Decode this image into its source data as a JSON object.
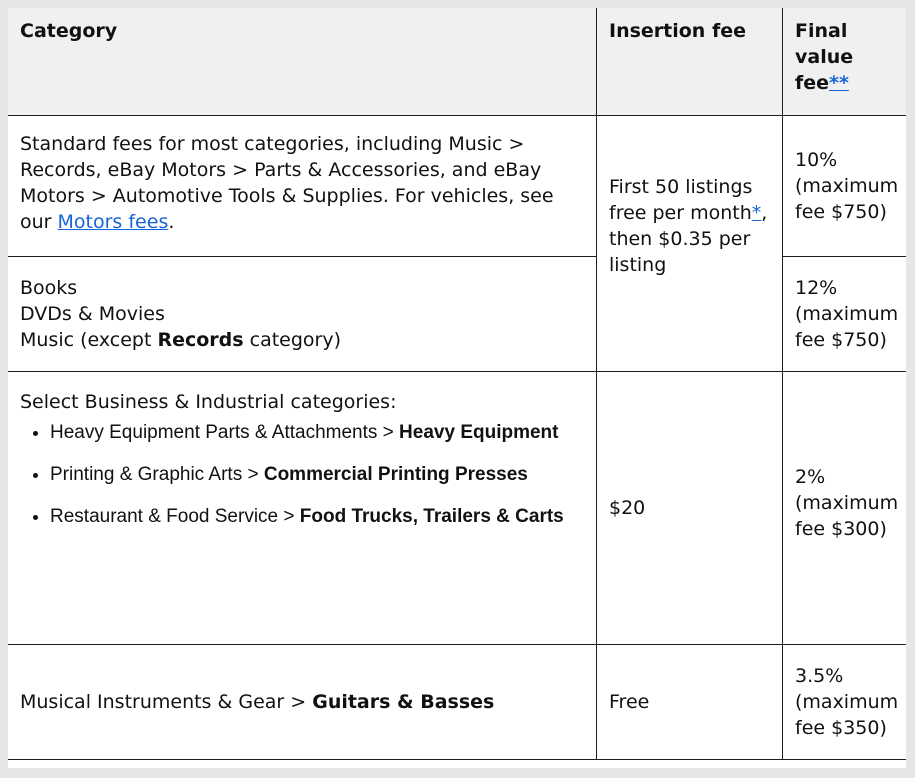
{
  "header": {
    "category": "Category",
    "insertion_fee": "Insertion fee",
    "final_value_fee_line1": "Final",
    "final_value_fee_line2": "value",
    "final_value_fee_line3": "fee",
    "final_value_fee_footnote": "**"
  },
  "rows": [
    {
      "category_text": "Standard fees for most categories, including Music > Records, eBay Motors > Parts & Accessories, and eBay Motors > Automotive Tools & Supplies. For vehicles, see our ",
      "category_link": "Motors fees",
      "category_suffix": ".",
      "final_pct": "10%",
      "final_max": "(maximum fee $750)"
    },
    {
      "lines": [
        "Books",
        "DVDs & Movies"
      ],
      "music_prefix": "Music (except ",
      "music_bold": "Records",
      "music_suffix": " category)",
      "final_pct": "12%",
      "final_max": "(maximum fee $750)"
    },
    {
      "intro": "Select Business & Industrial categories:",
      "items": [
        {
          "plain": "Heavy Equipment Parts & Attachments > ",
          "bold": "Heavy Equipment"
        },
        {
          "plain": "Printing & Graphic Arts > ",
          "bold": "Commercial Printing Presses"
        },
        {
          "plain": "Restaurant & Food Service > ",
          "bold": "Food Trucks, Trailers & Carts"
        }
      ],
      "insertion": "$20",
      "final_pct": "2%",
      "final_max": "(maximum fee $300)"
    },
    {
      "plain": "Musical Instruments & Gear > ",
      "bold": "Guitars & Basses",
      "insertion": "Free",
      "final_pct": "3.5%",
      "final_max": "(maximum fee $350)"
    }
  ],
  "shared_insertion": {
    "text_before": "First 50 listings free per month",
    "footnote": "*",
    "text_after": ", then $0.35 per listing"
  }
}
